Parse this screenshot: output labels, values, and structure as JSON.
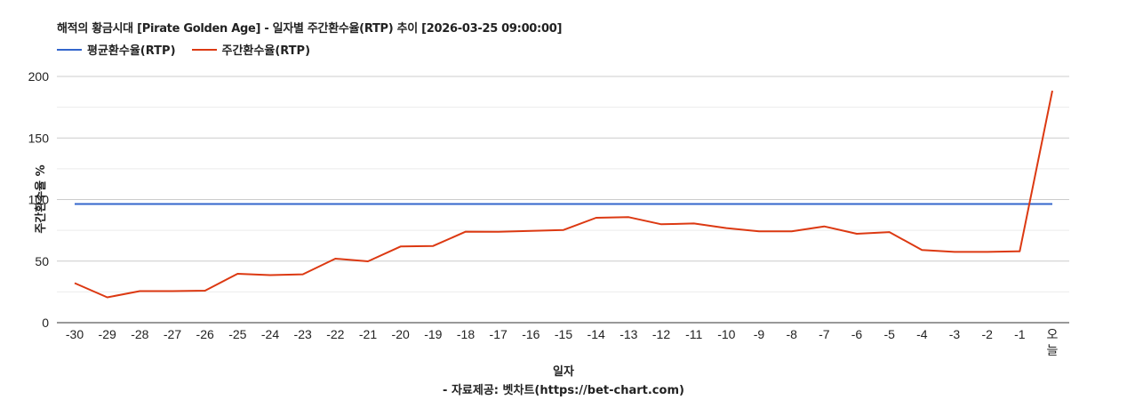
{
  "title": "해적의 황금시대 [Pirate Golden Age] - 일자별 주간환수율(RTP) 추이 [2026-03-25 09:00:00]",
  "legend": [
    {
      "label": "평균환수율(RTP)",
      "color": "#3366cc"
    },
    {
      "label": "주간환수율(RTP)",
      "color": "#dc3912"
    }
  ],
  "y_axis_label": "주간환수율 %",
  "x_axis_label": "일자",
  "source": "- 자료제공: 벳차트(https://bet-chart.com)",
  "chart_data": {
    "type": "line",
    "title": "해적의 황금시대 [Pirate Golden Age] - 일자별 주간환수율(RTP) 추이 [2026-03-25 09:00:00]",
    "xlabel": "일자",
    "ylabel": "주간환수율 %",
    "ylim": [
      0,
      200
    ],
    "yticks": [
      0,
      50,
      100,
      150,
      200
    ],
    "grid": true,
    "legend_position": "top-left",
    "categories": [
      "-30",
      "-29",
      "-28",
      "-27",
      "-26",
      "-25",
      "-24",
      "-23",
      "-22",
      "-21",
      "-20",
      "-19",
      "-18",
      "-17",
      "-16",
      "-15",
      "-14",
      "-13",
      "-12",
      "-11",
      "-10",
      "-9",
      "-8",
      "-7",
      "-6",
      "-5",
      "-4",
      "-3",
      "-2",
      "-1",
      "오늘"
    ],
    "series": [
      {
        "name": "평균환수율(RTP)",
        "color": "#3366cc",
        "values": [
          96.4,
          96.4,
          96.4,
          96.4,
          96.4,
          96.4,
          96.4,
          96.4,
          96.4,
          96.4,
          96.4,
          96.4,
          96.4,
          96.4,
          96.4,
          96.4,
          96.4,
          96.4,
          96.4,
          96.4,
          96.4,
          96.4,
          96.4,
          96.4,
          96.4,
          96.4,
          96.4,
          96.4,
          96.4,
          96.4,
          96.4
        ]
      },
      {
        "name": "주간환수율(RTP)",
        "color": "#dc3912",
        "values": [
          32.1,
          20.6,
          25.6,
          25.6,
          26.0,
          39.7,
          38.6,
          39.3,
          52.0,
          49.8,
          61.9,
          62.3,
          73.9,
          73.8,
          74.5,
          75.3,
          85.2,
          85.7,
          79.9,
          80.6,
          76.8,
          74.2,
          74.2,
          78.2,
          72.2,
          73.6,
          59.0,
          57.5,
          57.5,
          58.0,
          188.4
        ]
      }
    ]
  }
}
